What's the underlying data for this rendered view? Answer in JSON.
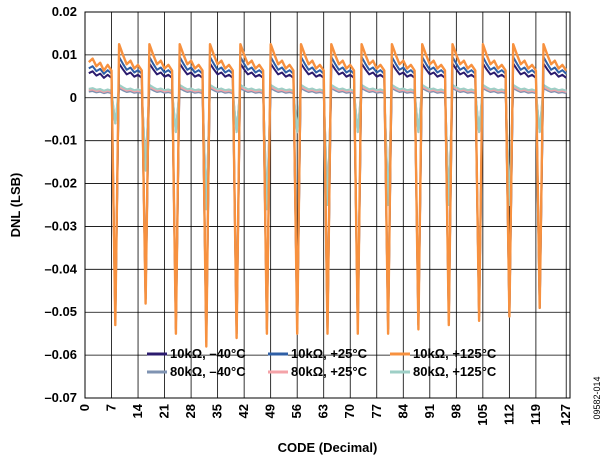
{
  "chart_data": {
    "type": "line",
    "title": "",
    "xlabel": "CODE (Decimal)",
    "ylabel": "DNL (LSB)",
    "xlim": [
      0,
      128
    ],
    "ylim": [
      -0.07,
      0.02
    ],
    "xticks": [
      0,
      7,
      14,
      21,
      28,
      35,
      42,
      49,
      56,
      63,
      70,
      77,
      84,
      91,
      98,
      105,
      112,
      119,
      127
    ],
    "yticks": [
      -0.07,
      -0.06,
      -0.05,
      -0.04,
      -0.03,
      -0.02,
      -0.01,
      0,
      0.01,
      0.02
    ],
    "ytick_labels": [
      "–0.07",
      "–0.06",
      "–0.05",
      "–0.04",
      "–0.03",
      "–0.02",
      "–0.01",
      "0",
      "0.01",
      "0.02"
    ],
    "grid": true,
    "legend_position": "bottom",
    "figure_id": "09582-014",
    "dip_codes": [
      8,
      16,
      24,
      32,
      40,
      48,
      56,
      64,
      72,
      80,
      88,
      96,
      104,
      112,
      120
    ],
    "series": [
      {
        "name": "10kΩ, –40°C",
        "color": "#2b1b6e",
        "peak": 0.008,
        "floor": 0.005,
        "dips": [
          -0.052,
          -0.047,
          -0.054,
          -0.057,
          -0.055,
          -0.054,
          -0.054,
          -0.054,
          -0.054,
          -0.054,
          -0.053,
          -0.052,
          -0.051,
          -0.051,
          -0.049
        ]
      },
      {
        "name": "10kΩ, +25°C",
        "color": "#2f5fa6",
        "peak": 0.0095,
        "floor": 0.006,
        "dips": [
          -0.052,
          -0.047,
          -0.054,
          -0.057,
          -0.055,
          -0.054,
          -0.054,
          -0.054,
          -0.054,
          -0.054,
          -0.053,
          -0.052,
          -0.051,
          -0.051,
          -0.049
        ]
      },
      {
        "name": "10kΩ, +125°C",
        "color": "#f7913f",
        "peak": 0.0125,
        "floor": 0.007,
        "dips": [
          -0.053,
          -0.048,
          -0.055,
          -0.058,
          -0.056,
          -0.055,
          -0.055,
          -0.055,
          -0.055,
          -0.055,
          -0.054,
          -0.053,
          -0.052,
          -0.051,
          -0.049
        ]
      },
      {
        "name": "80kΩ, –40°C",
        "color": "#7f93b2",
        "peak": 0.0022,
        "floor": 0.0012,
        "dips": [
          -0.006,
          -0.016,
          -0.008,
          -0.025,
          -0.008,
          -0.025,
          -0.008,
          -0.024,
          -0.008,
          -0.024,
          -0.008,
          -0.024,
          -0.008,
          -0.024,
          -0.008
        ]
      },
      {
        "name": "80kΩ, +25°C",
        "color": "#f4a3a8",
        "peak": 0.0026,
        "floor": 0.0015,
        "dips": [
          -0.006,
          -0.016,
          -0.008,
          -0.026,
          -0.008,
          -0.026,
          -0.008,
          -0.025,
          -0.008,
          -0.025,
          -0.008,
          -0.025,
          -0.008,
          -0.025,
          -0.008
        ]
      },
      {
        "name": "80kΩ, +125°C",
        "color": "#9ecfc6",
        "peak": 0.003,
        "floor": 0.0018,
        "dips": [
          -0.006,
          -0.017,
          -0.008,
          -0.026,
          -0.008,
          -0.026,
          -0.008,
          -0.025,
          -0.008,
          -0.025,
          -0.008,
          -0.025,
          -0.008,
          -0.025,
          -0.008
        ]
      }
    ]
  }
}
